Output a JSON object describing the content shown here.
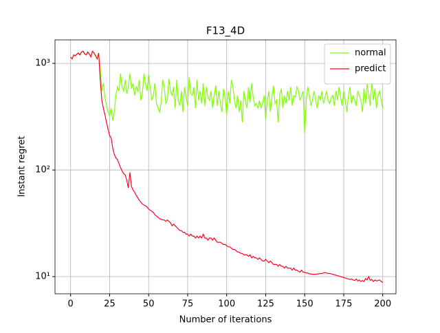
{
  "chart_data": {
    "type": "line",
    "title": "F13_4D",
    "xlabel": "Number of iterations",
    "ylabel": "Instant regret",
    "log_y": true,
    "grid": true,
    "legend": "upper right",
    "xlim": [
      -10,
      208.5
    ],
    "ylim": [
      6.9,
      1660
    ],
    "xticks": [
      0,
      25,
      50,
      75,
      100,
      125,
      150,
      175,
      200
    ],
    "yticks": [
      {
        "value": 10,
        "label": "10¹"
      },
      {
        "value": 100,
        "label": "10²"
      },
      {
        "value": 1000,
        "label": "10³"
      }
    ],
    "x": [
      0,
      1,
      2,
      3,
      4,
      5,
      6,
      7,
      8,
      9,
      10,
      11,
      12,
      13,
      14,
      15,
      16,
      17,
      18,
      19,
      20,
      21,
      22,
      23,
      24,
      25,
      26,
      27,
      28,
      29,
      30,
      31,
      32,
      33,
      34,
      35,
      36,
      37,
      38,
      39,
      40,
      41,
      42,
      43,
      44,
      45,
      46,
      47,
      48,
      49,
      50,
      51,
      52,
      53,
      54,
      55,
      56,
      57,
      58,
      59,
      60,
      61,
      62,
      63,
      64,
      65,
      66,
      67,
      68,
      69,
      70,
      71,
      72,
      73,
      74,
      75,
      76,
      77,
      78,
      79,
      80,
      81,
      82,
      83,
      84,
      85,
      86,
      87,
      88,
      89,
      90,
      91,
      92,
      93,
      94,
      95,
      96,
      97,
      98,
      99,
      100,
      101,
      102,
      103,
      104,
      105,
      106,
      107,
      108,
      109,
      110,
      111,
      112,
      113,
      114,
      115,
      116,
      117,
      118,
      119,
      120,
      121,
      122,
      123,
      124,
      125,
      126,
      127,
      128,
      129,
      130,
      131,
      132,
      133,
      134,
      135,
      136,
      137,
      138,
      139,
      140,
      141,
      142,
      143,
      144,
      145,
      146,
      147,
      148,
      149,
      150,
      151,
      152,
      153,
      154,
      155,
      156,
      157,
      158,
      159,
      160,
      161,
      162,
      163,
      164,
      165,
      166,
      167,
      168,
      169,
      170,
      171,
      172,
      173,
      174,
      175,
      176,
      177,
      178,
      179,
      180,
      181,
      182,
      183,
      184,
      185,
      186,
      187,
      188,
      189,
      190,
      191,
      192,
      193,
      194,
      195,
      196,
      197,
      198,
      199,
      200
    ],
    "series": [
      {
        "name": "normal",
        "color": "#7fff00",
        "values": [
          1150,
          1100,
          1200,
          1180,
          1220,
          1250,
          1200,
          1280,
          1300,
          1230,
          1200,
          1280,
          1220,
          1150,
          1300,
          1250,
          1180,
          1100,
          1200,
          900,
          550,
          650,
          480,
          400,
          350,
          320,
          380,
          290,
          350,
          500,
          600,
          550,
          800,
          600,
          550,
          700,
          520,
          600,
          800,
          580,
          650,
          500,
          600,
          550,
          700,
          450,
          520,
          800,
          650,
          550,
          780,
          600,
          450,
          500,
          650,
          420,
          380,
          350,
          430,
          700,
          600,
          420,
          450,
          720,
          550,
          500,
          600,
          380,
          700,
          450,
          400,
          550,
          350,
          600,
          480,
          400,
          750,
          520,
          500,
          600,
          380,
          700,
          450,
          550,
          420,
          650,
          400,
          600,
          480,
          450,
          550,
          380,
          500,
          620,
          400,
          550,
          420,
          350,
          580,
          480,
          330,
          550,
          420,
          700,
          600,
          450,
          380,
          500,
          350,
          450,
          280,
          550,
          450,
          380,
          600,
          430,
          650,
          480,
          400,
          420,
          380,
          450,
          380,
          420,
          500,
          300,
          450,
          550,
          350,
          480,
          620,
          420,
          450,
          280,
          500,
          580,
          380,
          500,
          420,
          550,
          450,
          600,
          400,
          500,
          480,
          600,
          550,
          450,
          500,
          550,
          220,
          450,
          600,
          500,
          400,
          450,
          550,
          450,
          380,
          500,
          450,
          550,
          420,
          480,
          550,
          450,
          420,
          480,
          500,
          400,
          550,
          450,
          600,
          480,
          400,
          550,
          450,
          350,
          500,
          600,
          420,
          500,
          450,
          400,
          550,
          500,
          450,
          350,
          580,
          420,
          650,
          500,
          400,
          680,
          450,
          580,
          380,
          500,
          550,
          450,
          380
        ]
      },
      {
        "name": "predict",
        "color": "#ff0022",
        "values": [
          1150,
          1100,
          1200,
          1180,
          1220,
          1250,
          1200,
          1280,
          1300,
          1230,
          1200,
          1280,
          1220,
          1150,
          1300,
          1250,
          1180,
          1100,
          1250,
          700,
          450,
          380,
          330,
          280,
          240,
          210,
          200,
          160,
          140,
          130,
          125,
          115,
          105,
          98,
          92,
          90,
          80,
          68,
          95,
          70,
          65,
          62,
          58,
          55,
          52,
          50,
          48,
          47,
          46,
          45,
          43,
          42,
          41,
          40,
          38,
          37,
          36,
          35,
          34.5,
          34,
          34,
          33,
          34,
          33,
          32,
          30,
          31,
          30,
          29,
          28,
          27,
          27,
          26,
          26,
          25,
          25,
          24,
          25,
          24,
          24,
          23,
          24,
          23,
          24,
          23,
          25,
          23,
          23,
          22,
          23,
          23,
          22,
          23,
          22,
          21,
          21,
          21,
          20.5,
          20,
          20,
          19.5,
          19,
          19,
          18.5,
          18,
          18,
          17.5,
          17,
          17,
          16.5,
          16.5,
          16,
          16,
          16,
          15.5,
          16,
          15,
          15.5,
          15,
          15,
          14.5,
          15,
          14.5,
          14,
          14,
          14.5,
          14,
          13.5,
          14,
          13.5,
          13,
          13,
          13,
          12.5,
          13,
          12.5,
          12.5,
          12,
          12.5,
          12,
          12,
          12,
          11.5,
          12,
          11.5,
          11.5,
          11.2,
          11,
          11.5,
          11,
          11,
          10.8,
          10.8,
          10.6,
          10.6,
          10.5,
          10.5,
          10.5,
          10.6,
          10.6,
          10.7,
          10.7,
          10.8,
          10.9,
          10.8,
          10.7,
          10.7,
          10.6,
          10.5,
          10.4,
          10.3,
          10.2,
          10.1,
          10,
          9.9,
          9.8,
          9.7,
          9.6,
          9.5,
          9.4,
          9.5,
          9.3,
          9.2,
          9.5,
          9.1,
          9.3,
          9.0,
          9.2,
          9.0,
          9.6,
          9.3,
          10,
          9.2,
          9.4,
          9.0,
          9.3,
          9.1,
          9.2,
          9.3,
          9.0,
          8.8
        ]
      }
    ]
  }
}
